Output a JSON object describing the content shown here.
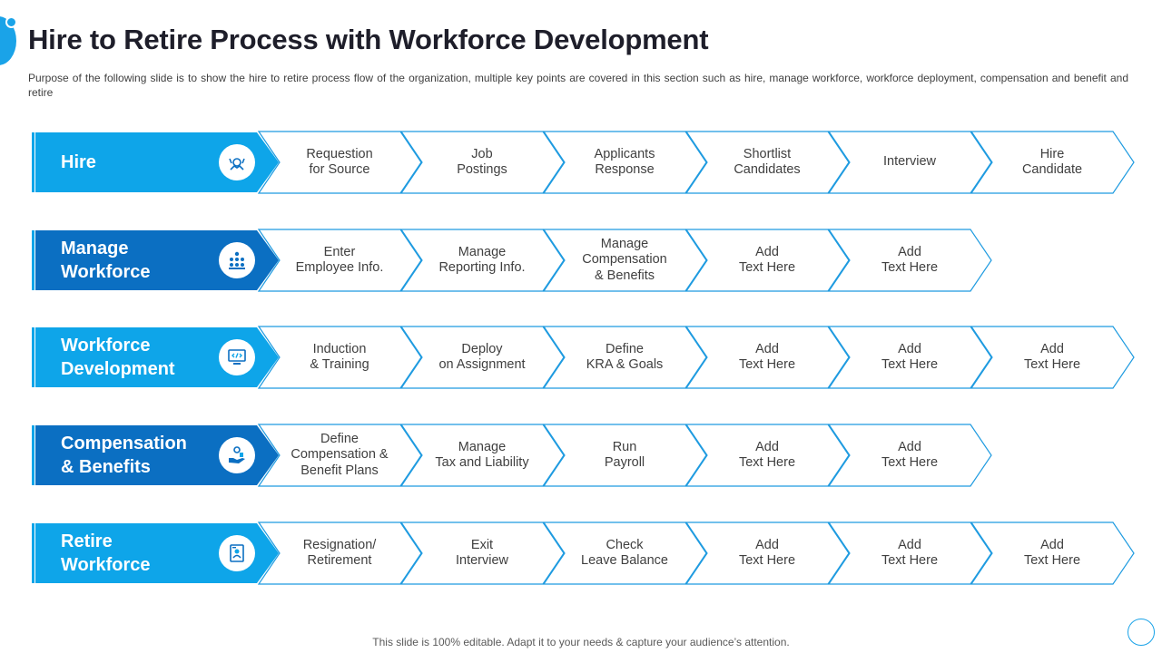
{
  "title": "Hire to Retire Process with Workforce Development",
  "subtitle": "Purpose of the following slide is to show the hire to retire process flow of the organization, multiple key points are covered in this section such as hire, manage workforce, workforce deployment, compensation and benefit and retire",
  "footer": "This slide is 100% editable. Adapt it to your needs & capture your audience’s attention.",
  "colors": {
    "light_blue": "#0ea5e9",
    "dark_blue": "#0b6fc2",
    "chevron_border": "#1f9be0",
    "text": "#404040"
  },
  "rows": [
    {
      "label": "Hire",
      "color": "light",
      "icon": "handshake-icon",
      "steps": [
        "Requestion\nfor Source",
        "Job\nPostings",
        "Applicants\nResponse",
        "Shortlist\nCandidates",
        "Interview",
        "Hire\nCandidate"
      ]
    },
    {
      "label": "Manage\nWorkforce",
      "color": "dark",
      "icon": "team-icon",
      "steps": [
        "Enter\nEmployee Info.",
        "Manage\nReporting Info.",
        "Manage\nCompensation\n& Benefits",
        "Add\nText Here",
        "Add\nText Here"
      ]
    },
    {
      "label": "Workforce\nDevelopment",
      "color": "light",
      "icon": "code-monitor-icon",
      "steps": [
        "Induction\n& Training",
        "Deploy\non Assignment",
        "Define\nKRA & Goals",
        "Add\nText Here",
        "Add\nText Here",
        "Add\nText Here"
      ]
    },
    {
      "label": "Compensation\n& Benefits",
      "color": "dark",
      "icon": "coins-hand-icon",
      "steps": [
        "Define\nCompensation &\nBenefit Plans",
        "Manage\nTax and Liability",
        "Run\nPayroll",
        "Add\nText Here",
        "Add\nText Here"
      ]
    },
    {
      "label": "Retire\nWorkforce",
      "color": "light",
      "icon": "document-person-icon",
      "steps": [
        "Resignation/\nRetirement",
        "Exit\nInterview",
        "Check\nLeave Balance",
        "Add\nText Here",
        "Add\nText Here",
        "Add\nText Here"
      ]
    }
  ]
}
